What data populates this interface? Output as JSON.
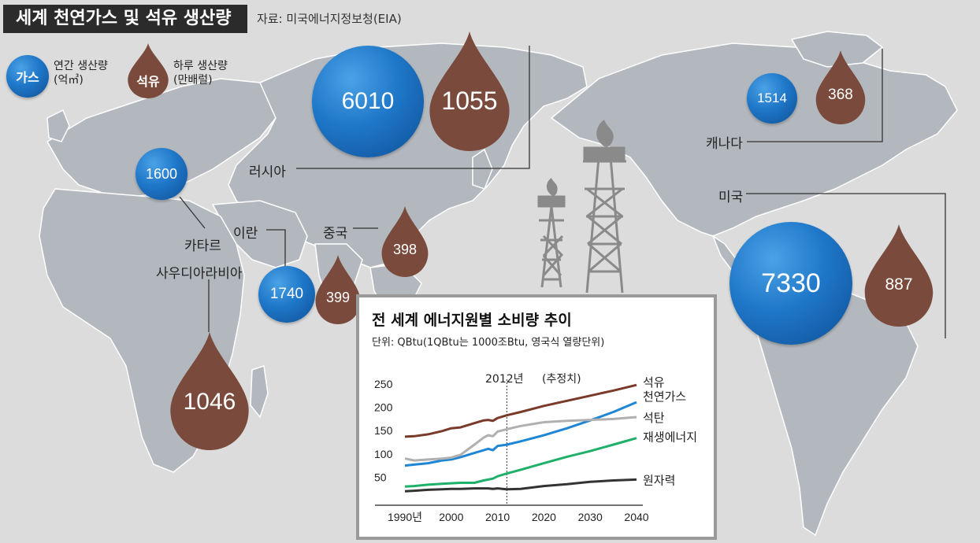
{
  "header": {
    "title": "세계 천연가스 및 석유 생산량",
    "source": "자료: 미국에너지정보청(EIA)"
  },
  "legend": {
    "gas_symbol": "가스",
    "gas_desc_line1": "연간 생산량",
    "gas_desc_line2": "(억㎥)",
    "oil_symbol": "석유",
    "oil_desc_line1": "하루 생산량",
    "oil_desc_line2": "(만배럴)"
  },
  "colors": {
    "gas_blue": "#1f77c9",
    "oil_brown": "#7a4b3c",
    "map_land": "#b3b8be",
    "series_oil": "#7a3a2a",
    "series_gas": "#1e86d4",
    "series_coal": "#b0b0b0",
    "series_renew": "#1fb06a",
    "series_nuclear": "#333333"
  },
  "countries": {
    "russia": {
      "name": "러시아",
      "gas": "6010",
      "oil": "1055"
    },
    "canada": {
      "name": "캐나다",
      "gas": "1514",
      "oil": "368"
    },
    "usa": {
      "name": "미국",
      "gas": "7330",
      "oil": "887"
    },
    "qatar": {
      "name": "카타르",
      "gas": "1600"
    },
    "iran": {
      "name": "이란",
      "gas": "1740",
      "oil": "399"
    },
    "china": {
      "name": "중국",
      "oil": "398"
    },
    "saudi": {
      "name": "사우디아라비아",
      "oil": "1046"
    }
  },
  "inset": {
    "title": "전 세계 에너지원별 소비량 추이",
    "subtitle": "단위: QBtu(1QBtu는 1000조Btu, 영국식 열량단위)",
    "annotation_year": "2012년",
    "annotation_est": "(추정치)"
  },
  "chart_data": {
    "type": "line",
    "title": "전 세계 에너지원별 소비량 추이",
    "ylabel": "단위: QBtu(1QBtu는 1000조Btu, 영국식 열량단위)",
    "xlim": [
      1990,
      2040
    ],
    "ylim": [
      0,
      250
    ],
    "x_tick_labels": [
      "1990년",
      "2000",
      "2010",
      "2020",
      "2030",
      "2040"
    ],
    "x_ticks": [
      1990,
      2000,
      2010,
      2020,
      2030,
      2040
    ],
    "y_ticks": [
      50,
      100,
      150,
      200,
      250
    ],
    "projection_start": 2012,
    "series": [
      {
        "name": "석유",
        "x": [
          1990,
          1992,
          1995,
          1998,
          2000,
          2002,
          2005,
          2007,
          2008,
          2009,
          2010,
          2012,
          2015,
          2020,
          2025,
          2030,
          2035,
          2040
        ],
        "y": [
          137,
          138,
          142,
          149,
          155,
          157,
          166,
          172,
          173,
          171,
          177,
          183,
          190,
          203,
          214,
          225,
          236,
          248
        ]
      },
      {
        "name": "천연가스",
        "x": [
          1990,
          1992,
          1995,
          1998,
          2000,
          2002,
          2005,
          2007,
          2008,
          2009,
          2010,
          2012,
          2015,
          2020,
          2025,
          2030,
          2035,
          2040
        ],
        "y": [
          75,
          77,
          80,
          86,
          88,
          93,
          102,
          108,
          111,
          108,
          117,
          120,
          127,
          140,
          155,
          172,
          190,
          211
        ]
      },
      {
        "name": "석탄",
        "x": [
          1990,
          1992,
          1995,
          1998,
          2000,
          2002,
          2005,
          2007,
          2008,
          2009,
          2010,
          2012,
          2015,
          2020,
          2025,
          2030,
          2035,
          2040
        ],
        "y": [
          90,
          86,
          88,
          90,
          92,
          98,
          120,
          135,
          140,
          138,
          148,
          153,
          160,
          168,
          171,
          173,
          175,
          179
        ]
      },
      {
        "name": "재생에너지",
        "x": [
          1990,
          1992,
          1995,
          1998,
          2000,
          2002,
          2005,
          2007,
          2008,
          2009,
          2010,
          2012,
          2015,
          2020,
          2025,
          2030,
          2035,
          2040
        ],
        "y": [
          30,
          31,
          34,
          36,
          37,
          38,
          38,
          43,
          45,
          47,
          52,
          58,
          66,
          80,
          94,
          106,
          120,
          134
        ]
      },
      {
        "name": "원자력",
        "x": [
          1990,
          1992,
          1995,
          1998,
          2000,
          2002,
          2005,
          2007,
          2008,
          2009,
          2010,
          2012,
          2015,
          2020,
          2025,
          2030,
          2035,
          2040
        ],
        "y": [
          20,
          21,
          23,
          24,
          25,
          25,
          26,
          26,
          26,
          25,
          26,
          24,
          25,
          31,
          35,
          40,
          43,
          45
        ]
      }
    ]
  }
}
